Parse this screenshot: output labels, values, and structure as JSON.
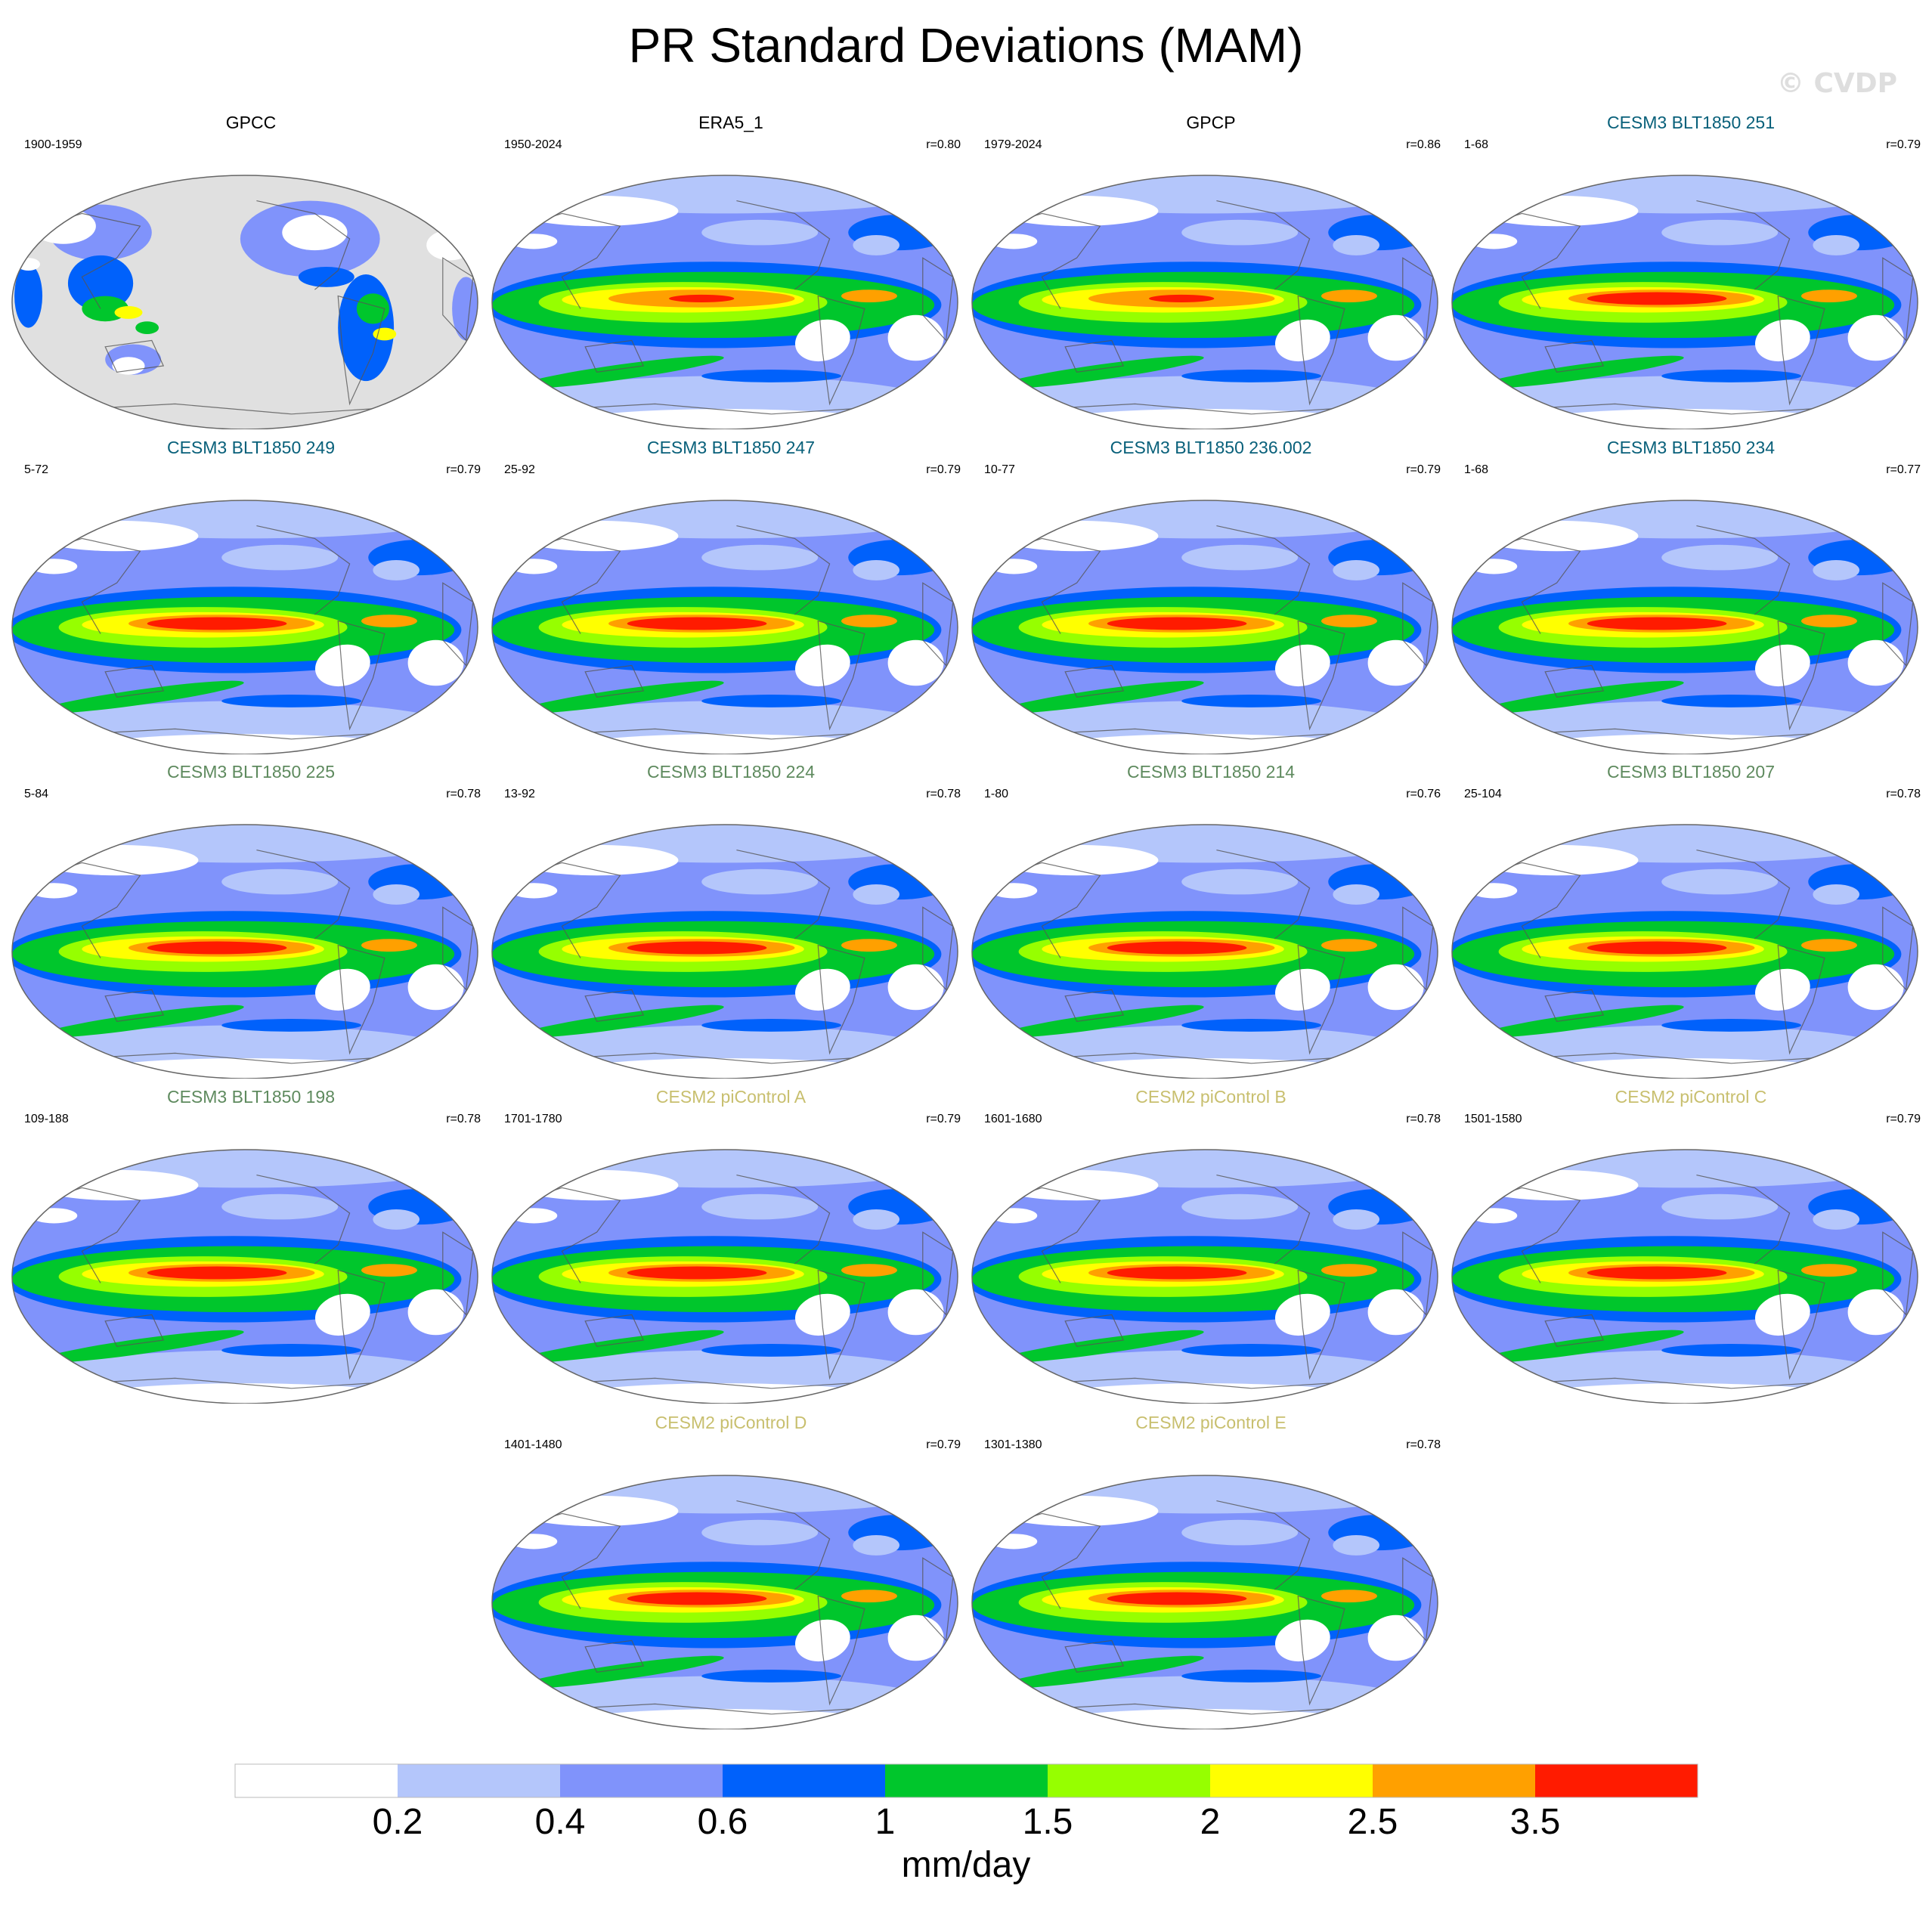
{
  "title": "PR Standard Deviations (MAM)",
  "watermark": "© CVDP",
  "units": "mm/day",
  "colorbar": {
    "colors": [
      "#ffffff",
      "#b4c6fb",
      "#8093fb",
      "#0061fb",
      "#00c62c",
      "#96ff00",
      "#ffff00",
      "#ffa000",
      "#ff1b00"
    ],
    "labels": [
      "0.2",
      "0.4",
      "0.6",
      "1",
      "1.5",
      "2",
      "2.5",
      "3.5"
    ]
  },
  "title_colors": {
    "obs": "#000000",
    "blt_a": "#08607a",
    "blt_b": "#5e8a5e",
    "pic": "#c8bf6e"
  },
  "panels": [
    {
      "title": "GPCC",
      "years": "1900-1959",
      "r": "",
      "group": "obs",
      "variant": "gpcc"
    },
    {
      "title": "ERA5_1",
      "years": "1950-2024",
      "r": "r=0.80",
      "group": "obs",
      "variant": "obs"
    },
    {
      "title": "GPCP",
      "years": "1979-2024",
      "r": "r=0.86",
      "group": "obs",
      "variant": "obs"
    },
    {
      "title": "CESM3 BLT1850 251",
      "years": "1-68",
      "r": "r=0.79",
      "group": "blt_a",
      "variant": "model"
    },
    {
      "title": "CESM3 BLT1850 249",
      "years": "5-72",
      "r": "r=0.79",
      "group": "blt_a",
      "variant": "model"
    },
    {
      "title": "CESM3 BLT1850 247",
      "years": "25-92",
      "r": "r=0.79",
      "group": "blt_a",
      "variant": "model"
    },
    {
      "title": "CESM3 BLT1850 236.002",
      "years": "10-77",
      "r": "r=0.79",
      "group": "blt_a",
      "variant": "model"
    },
    {
      "title": "CESM3 BLT1850 234",
      "years": "1-68",
      "r": "r=0.77",
      "group": "blt_a",
      "variant": "model"
    },
    {
      "title": "CESM3 BLT1850 225",
      "years": "5-84",
      "r": "r=0.78",
      "group": "blt_b",
      "variant": "model"
    },
    {
      "title": "CESM3 BLT1850 224",
      "years": "13-92",
      "r": "r=0.78",
      "group": "blt_b",
      "variant": "model"
    },
    {
      "title": "CESM3 BLT1850 214",
      "years": "1-80",
      "r": "r=0.76",
      "group": "blt_b",
      "variant": "model"
    },
    {
      "title": "CESM3 BLT1850 207",
      "years": "25-104",
      "r": "r=0.78",
      "group": "blt_b",
      "variant": "model"
    },
    {
      "title": "CESM3 BLT1850 198",
      "years": "109-188",
      "r": "r=0.78",
      "group": "blt_b",
      "variant": "model"
    },
    {
      "title": "CESM2 piControl A",
      "years": "1701-1780",
      "r": "r=0.79",
      "group": "pic",
      "variant": "pic"
    },
    {
      "title": "CESM2 piControl B",
      "years": "1601-1680",
      "r": "r=0.78",
      "group": "pic",
      "variant": "pic"
    },
    {
      "title": "CESM2 piControl C",
      "years": "1501-1580",
      "r": "r=0.79",
      "group": "pic",
      "variant": "pic"
    },
    {
      "title": "CESM2 piControl D",
      "years": "1401-1480",
      "r": "r=0.79",
      "group": "pic",
      "variant": "pic"
    },
    {
      "title": "CESM2 piControl E",
      "years": "1301-1380",
      "r": "r=0.78",
      "group": "pic",
      "variant": "pic"
    }
  ]
}
